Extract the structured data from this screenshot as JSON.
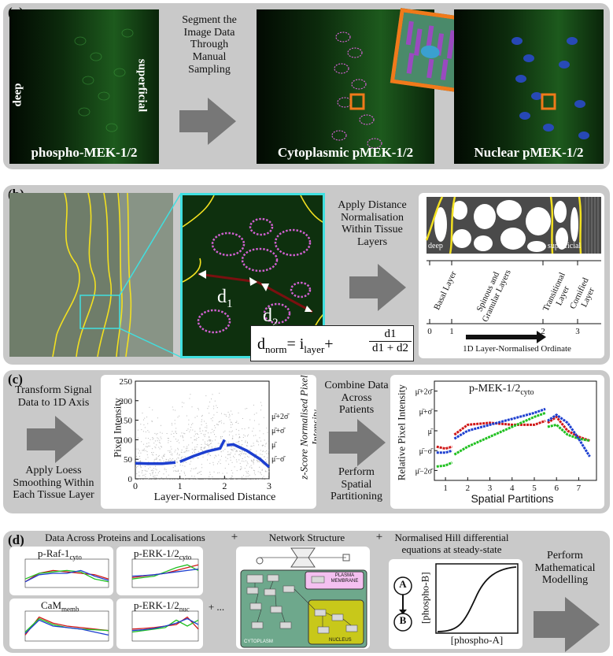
{
  "panel_a": {
    "label": "(a)",
    "image1_caption": "phospho-MEK-1/2",
    "deep_label": "deep",
    "superficial_label": "superficial",
    "arrow_text": "Segment the Image Data Through Manual Sampling",
    "image2_caption": "Cytoplasmic pMEK-1/2",
    "image3_caption": "Nuclear pMEK-1/2"
  },
  "panel_b": {
    "label": "(b)",
    "d1": "d",
    "d1_sub": "1",
    "d2": "d",
    "d2_sub": "2",
    "formula_lhs": "d",
    "formula_lhs_sub": "norm",
    "formula_eq": "= i",
    "formula_i_sub": "layer",
    "formula_plus": "+",
    "formula_num": "d1",
    "formula_den": "d1 + d2",
    "arrow_text": "Apply Distance Normalisation Within Tissue Layers",
    "schematic_deep": "deep",
    "schematic_superficial": "superficial",
    "layers": [
      "Basal Layer",
      "Spinous and Granular Layers",
      "Transitional Layer",
      "Cornified Layer"
    ],
    "axis_ticks": [
      "0",
      "1",
      "2",
      "3"
    ],
    "axis_label": "1D Layer-Normalised Ordinate"
  },
  "panel_c": {
    "label": "(c)",
    "arrow_text_top": "Transform Signal Data to 1D Axis",
    "arrow_text_bottom": "Apply Loess Smoothing Within Each Tissue Layer",
    "combine_text_top": "Combine Data Across Patients",
    "combine_text_bottom": "Perform Spatial Partitioning",
    "plot1": {
      "xlabel": "Layer-Normalised Distance",
      "ylabel": "Pixel Intensity",
      "yright_label": "z-Score Normalised Pixel Intensity",
      "yticks": [
        "0",
        "50",
        "100",
        "150",
        "200",
        "250"
      ],
      "xticks": [
        "0",
        "1",
        "2",
        "3"
      ],
      "right_ticks": [
        "μ̄+2σ̄",
        "μ̄+σ̄",
        "μ̄",
        "μ̄−σ̄"
      ]
    },
    "plot2": {
      "title": "p-MEK-1/2",
      "title_sub": "cyto",
      "xlabel": "Spatial Partitions",
      "ylabel": "Relative Pixel Intensity",
      "yticks": [
        "μ̄+2σ̄",
        "μ̄+σ̄",
        "μ̄",
        "μ̄−σ̄",
        "μ̄−2σ̄"
      ],
      "xticks": [
        "1",
        "2",
        "3",
        "4",
        "5",
        "6",
        "7"
      ]
    }
  },
  "panel_d": {
    "label": "(d)",
    "data_title": "Data Across Proteins and Localisations",
    "plus1": "+",
    "network_title": "Network Structure",
    "plus2": "+",
    "hill_title": "Normalised Hill differential equations at steady-state",
    "modelling_text": "Perform Mathematical Modelling",
    "mini_plots": [
      {
        "name": "p-Raf-1",
        "sub": "cyto"
      },
      {
        "name": "p-ERK-1/2",
        "sub": "cyto"
      },
      {
        "name": "CaM",
        "sub": "memb"
      },
      {
        "name": "p-ERK-1/2",
        "sub": "nuc"
      }
    ],
    "ellipsis": "+ ...",
    "plasma_membrane": "PLASMA MEMBRANE",
    "cytoplasm": "CYTOPLASM",
    "nucleus": "NUCLEUS",
    "node_a": "A",
    "node_b": "B",
    "hill_xlabel": "[phospho-A]",
    "hill_ylabel": "[phospho-B]"
  }
}
